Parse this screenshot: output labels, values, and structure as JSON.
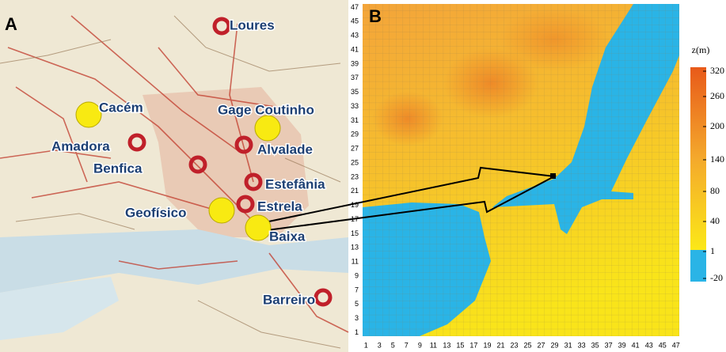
{
  "panel_a": {
    "label": "A",
    "stations": [
      {
        "name": "Cacém",
        "marker": "yellow-dot"
      },
      {
        "name": "Gage Coutinho",
        "marker": "yellow-dot"
      },
      {
        "name": "Amadora",
        "marker": "red-ring"
      },
      {
        "name": "Alvalade",
        "marker": "red-ring"
      },
      {
        "name": "Benfica",
        "marker": "red-ring"
      },
      {
        "name": "Estefânia",
        "marker": "red-ring"
      },
      {
        "name": "Geofísico",
        "marker": "yellow-dot"
      },
      {
        "name": "Estrela",
        "marker": "red-ring"
      },
      {
        "name": "Baixa",
        "marker": "yellow-dot"
      },
      {
        "name": "Barreiro",
        "marker": "red-ring"
      },
      {
        "name": "Loures",
        "marker": "red-ring"
      }
    ]
  },
  "panel_b": {
    "label": "B",
    "xticks": [
      1,
      3,
      5,
      7,
      9,
      11,
      13,
      15,
      17,
      19,
      21,
      23,
      25,
      27,
      29,
      31,
      33,
      35,
      37,
      39,
      41,
      43,
      45,
      47
    ],
    "yticks": [
      1,
      3,
      5,
      7,
      9,
      11,
      13,
      15,
      17,
      19,
      21,
      23,
      25,
      27,
      29,
      31,
      33,
      35,
      37,
      39,
      41,
      43,
      45,
      47
    ],
    "colorbar": {
      "title": "z(m)",
      "ticks": [
        320,
        260,
        200,
        140,
        80,
        40,
        1,
        -20
      ]
    }
  }
}
